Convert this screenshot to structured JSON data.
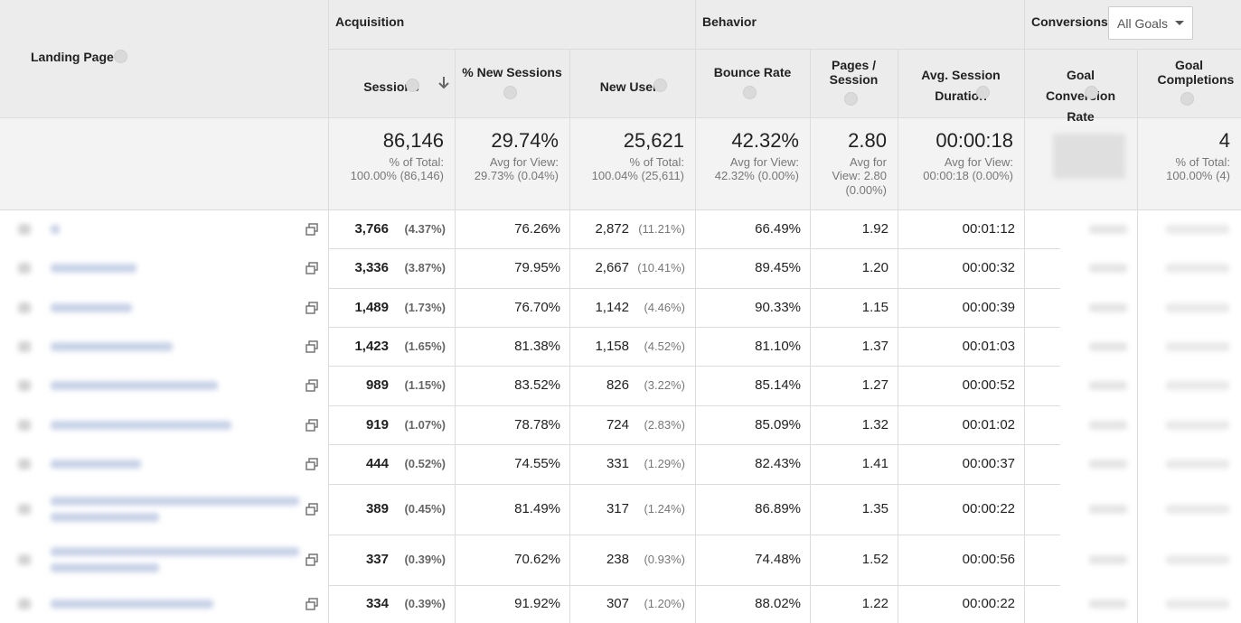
{
  "header_groups": [
    "Acquisition",
    "Behavior",
    "Conversions"
  ],
  "goal_selector": "All Goals",
  "columns": [
    "Landing Page",
    "Sessions",
    "% New Sessions",
    "New Users",
    "Bounce Rate",
    "Pages / Session",
    "Avg. Session Duration",
    "Goal Conversion Rate",
    "Goal Completions"
  ],
  "totals": [
    {
      "value": "86,146",
      "label": "% of Total:",
      "detail": "100.00% (86,146)"
    },
    {
      "value": "29.74%",
      "label": "Avg for View:",
      "detail": "29.73% (0.04%)"
    },
    {
      "value": "25,621",
      "label": "% of Total:",
      "detail": "100.04% (25,611)"
    },
    {
      "value": "42.32%",
      "label": "Avg for View:",
      "detail": "42.32% (0.00%)"
    },
    {
      "value": "2.80",
      "label": "Avg for View: 2.80",
      "detail": "(0.00%)"
    },
    {
      "value": "00:00:18",
      "label": "Avg for View:",
      "detail": "00:00:18 (0.00%)"
    },
    {
      "value": "4",
      "label": "% of Total:",
      "detail": "100.00% (4)"
    }
  ],
  "rows": [
    [
      "3,766",
      "(4.37%)",
      "76.26%",
      "2,872",
      "(11.21%)",
      "66.49%",
      "1.92",
      "00:01:12"
    ],
    [
      "3,336",
      "(3.87%)",
      "79.95%",
      "2,667",
      "(10.41%)",
      "89.45%",
      "1.20",
      "00:00:32"
    ],
    [
      "1,489",
      "(1.73%)",
      "76.70%",
      "1,142",
      "(4.46%)",
      "90.33%",
      "1.15",
      "00:00:39"
    ],
    [
      "1,423",
      "(1.65%)",
      "81.38%",
      "1,158",
      "(4.52%)",
      "81.10%",
      "1.37",
      "00:01:03"
    ],
    [
      "989",
      "(1.15%)",
      "83.52%",
      "826",
      "(3.22%)",
      "85.14%",
      "1.27",
      "00:00:52"
    ],
    [
      "919",
      "(1.07%)",
      "78.78%",
      "724",
      "(2.83%)",
      "85.09%",
      "1.32",
      "00:01:02"
    ],
    [
      "444",
      "(0.52%)",
      "74.55%",
      "331",
      "(1.29%)",
      "82.43%",
      "1.41",
      "00:00:37"
    ],
    [
      "389",
      "(0.45%)",
      "81.49%",
      "317",
      "(1.24%)",
      "86.89%",
      "1.35",
      "00:00:22"
    ],
    [
      "337",
      "(0.39%)",
      "70.62%",
      "238",
      "(0.93%)",
      "74.48%",
      "1.52",
      "00:00:56"
    ],
    [
      "334",
      "(0.39%)",
      "91.92%",
      "307",
      "(1.20%)",
      "88.02%",
      "1.22",
      "00:00:22"
    ]
  ]
}
